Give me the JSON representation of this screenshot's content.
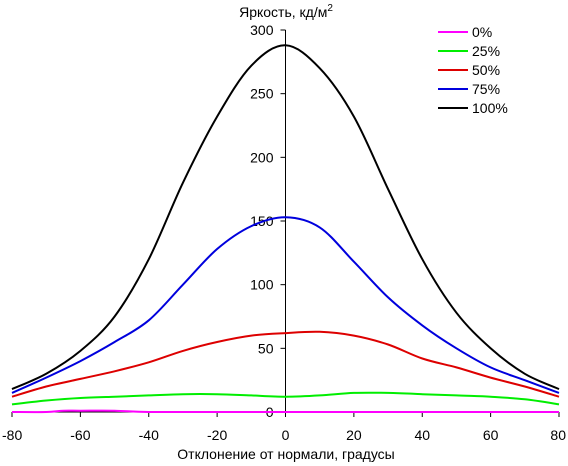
{
  "chart_data": {
    "type": "line",
    "ylabel": "Яркость, кд/м",
    "ylabel_sup": "2",
    "xlabel": "Отклонение от нормали, градусы",
    "xlim": [
      -80,
      80
    ],
    "ylim": [
      0,
      300
    ],
    "x_ticks": [
      -80,
      -60,
      -40,
      -20,
      0,
      20,
      40,
      60,
      80
    ],
    "y_ticks": [
      0,
      50,
      100,
      150,
      200,
      250,
      300
    ],
    "grid": false,
    "legend_position": "top-right",
    "series": [
      {
        "name": "0%",
        "color": "#ff00ff",
        "x": [
          -80,
          -70,
          -65,
          -60,
          -50,
          -40,
          -20,
          0,
          20,
          40,
          60,
          80
        ],
        "y": [
          0,
          0,
          1,
          1,
          1,
          0,
          0,
          0,
          0,
          0,
          0,
          0
        ]
      },
      {
        "name": "25%",
        "color": "#00ee00",
        "x": [
          -80,
          -70,
          -60,
          -50,
          -40,
          -30,
          -20,
          -10,
          0,
          10,
          20,
          30,
          40,
          50,
          60,
          70,
          80
        ],
        "y": [
          6,
          9,
          11,
          12,
          13,
          14,
          14,
          13,
          12,
          13,
          15,
          15,
          14,
          13,
          12,
          10,
          6
        ]
      },
      {
        "name": "50%",
        "color": "#dd0000",
        "x": [
          -80,
          -70,
          -60,
          -50,
          -40,
          -30,
          -20,
          -10,
          0,
          10,
          20,
          30,
          40,
          50,
          60,
          70,
          80
        ],
        "y": [
          12,
          20,
          26,
          32,
          39,
          48,
          55,
          60,
          62,
          63,
          60,
          53,
          42,
          35,
          27,
          20,
          12
        ]
      },
      {
        "name": "75%",
        "color": "#0000dd",
        "x": [
          -80,
          -70,
          -60,
          -50,
          -40,
          -30,
          -20,
          -10,
          0,
          10,
          20,
          30,
          40,
          50,
          60,
          70,
          80
        ],
        "y": [
          15,
          27,
          40,
          55,
          72,
          100,
          128,
          146,
          153,
          145,
          118,
          90,
          68,
          50,
          35,
          25,
          15
        ]
      },
      {
        "name": "100%",
        "color": "#000000",
        "x": [
          -80,
          -70,
          -60,
          -50,
          -40,
          -30,
          -20,
          -10,
          0,
          10,
          20,
          30,
          40,
          50,
          60,
          70,
          80
        ],
        "y": [
          18,
          30,
          48,
          75,
          120,
          180,
          232,
          272,
          288,
          270,
          232,
          175,
          120,
          78,
          50,
          30,
          18
        ]
      }
    ]
  }
}
